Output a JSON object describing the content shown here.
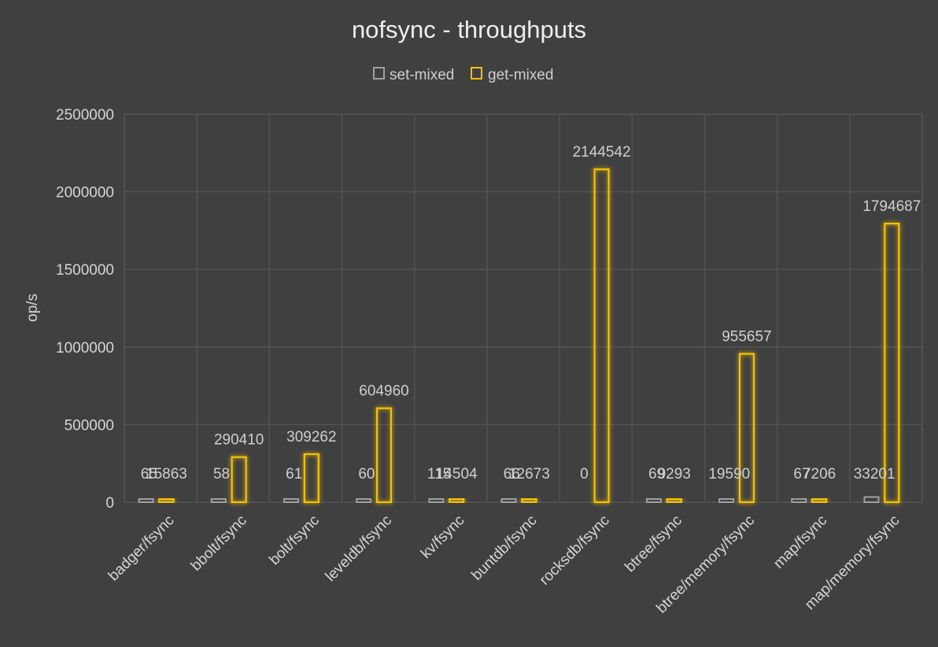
{
  "chart_data": {
    "type": "bar",
    "title": "nofsync - throughputs",
    "xlabel": "",
    "ylabel": "op/s",
    "ylim": [
      0,
      2500000
    ],
    "yticks": [
      0,
      500000,
      1000000,
      1500000,
      2000000,
      2500000
    ],
    "grid": true,
    "legend_position": "top",
    "categories": [
      "badger/fsync",
      "bbolt/fsync",
      "bolt/fsync",
      "leveldb/fsync",
      "kv/fsync",
      "buntdb/fsync",
      "rocksdb/fsync",
      "btree/fsync",
      "btree/memory/fsync",
      "map/fsync",
      "map/memory/fsync"
    ],
    "series": [
      {
        "name": "set-mixed",
        "color": "#a0a0a0",
        "values": [
          65,
          58,
          61,
          60,
          115,
          66,
          0,
          69,
          19590,
          67,
          33201
        ]
      },
      {
        "name": "get-mixed",
        "color": "#f5c200",
        "values": [
          15863,
          290410,
          309262,
          604960,
          14504,
          12673,
          2144542,
          9293,
          955657,
          7206,
          1794687
        ]
      }
    ]
  }
}
